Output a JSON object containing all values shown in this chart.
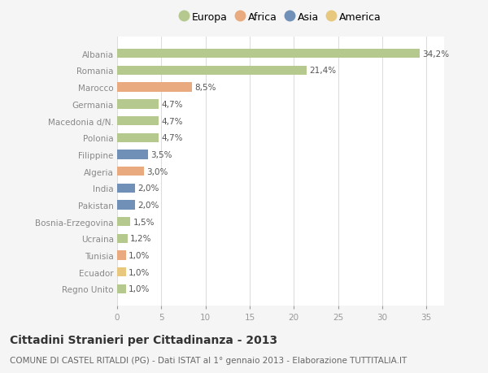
{
  "countries": [
    "Albania",
    "Romania",
    "Marocco",
    "Germania",
    "Macedonia d/N.",
    "Polonia",
    "Filippine",
    "Algeria",
    "India",
    "Pakistan",
    "Bosnia-Erzegovina",
    "Ucraina",
    "Tunisia",
    "Ecuador",
    "Regno Unito"
  ],
  "values": [
    34.2,
    21.4,
    8.5,
    4.7,
    4.7,
    4.7,
    3.5,
    3.0,
    2.0,
    2.0,
    1.5,
    1.2,
    1.0,
    1.0,
    1.0
  ],
  "labels": [
    "34,2%",
    "21,4%",
    "8,5%",
    "4,7%",
    "4,7%",
    "4,7%",
    "3,5%",
    "3,0%",
    "2,0%",
    "2,0%",
    "1,5%",
    "1,2%",
    "1,0%",
    "1,0%",
    "1,0%"
  ],
  "continents": [
    "Europa",
    "Europa",
    "Africa",
    "Europa",
    "Europa",
    "Europa",
    "Asia",
    "Africa",
    "Asia",
    "Asia",
    "Europa",
    "Europa",
    "Africa",
    "America",
    "Europa"
  ],
  "colors": {
    "Europa": "#b5c98e",
    "Africa": "#e8aa7e",
    "Asia": "#7090b8",
    "America": "#e8c87e"
  },
  "legend_order": [
    "Europa",
    "Africa",
    "Asia",
    "America"
  ],
  "title": "Cittadini Stranieri per Cittadinanza - 2013",
  "subtitle": "COMUNE DI CASTEL RITALDI (PG) - Dati ISTAT al 1° gennaio 2013 - Elaborazione TUTTITALIA.IT",
  "xlim": [
    0,
    37
  ],
  "xticks": [
    0,
    5,
    10,
    15,
    20,
    25,
    30,
    35
  ],
  "bg_color": "#f5f5f5",
  "plot_bg_color": "#ffffff",
  "grid_color": "#dddddd",
  "title_fontsize": 10,
  "subtitle_fontsize": 7.5,
  "label_fontsize": 7.5,
  "tick_fontsize": 7.5,
  "legend_fontsize": 9
}
